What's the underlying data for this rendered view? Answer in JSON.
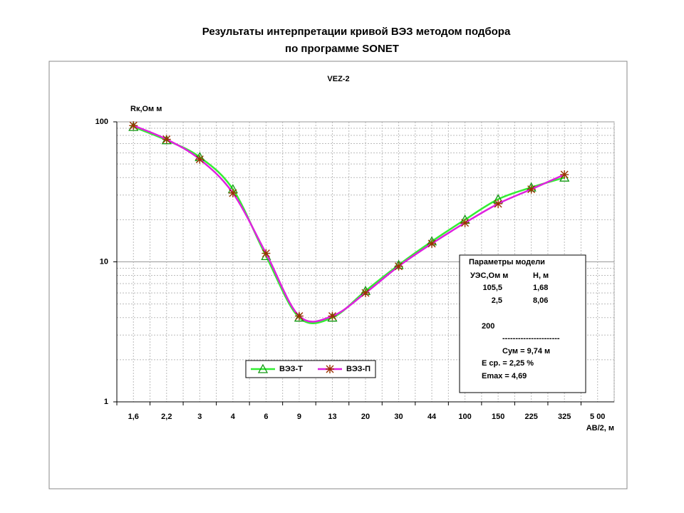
{
  "chart_data": {
    "type": "line",
    "title": [
      "Результаты интерпретации кривой ВЭЗ методом подбора",
      "по программе SONET"
    ],
    "subtitle": "VEZ-2",
    "y_label": "Rк,Ом м",
    "x_label": "АВ/2, м",
    "categories": [
      "1,6",
      "2,2",
      "3",
      "4",
      "6",
      "9",
      "13",
      "20",
      "30",
      "44",
      "100",
      "150",
      "225",
      "325",
      "5 00"
    ],
    "series": [
      {
        "name": "ВЭЗ-Т",
        "color": "#33ee33",
        "marker_color": "#119911",
        "marker": "triangle",
        "values": [
          92,
          74,
          56,
          33,
          11,
          4,
          4,
          6.2,
          9.5,
          14,
          20,
          28,
          34,
          40,
          null
        ]
      },
      {
        "name": "ВЭЗ-П",
        "color": "#e020e0",
        "marker_color": "#993300",
        "marker": "asterisk",
        "values": [
          94,
          75,
          54,
          31,
          11.5,
          4.1,
          4.1,
          6,
          9.3,
          13.5,
          19,
          26,
          33,
          42,
          null
        ]
      }
    ],
    "ylim": [
      1,
      100
    ],
    "yticks": [
      1,
      10,
      100
    ],
    "log_y": true,
    "grid": true,
    "minor_grid": true,
    "parameters": {
      "title": "Параметры модели",
      "headers": [
        "УЭС,Ом м",
        "Н, м"
      ],
      "rows": [
        [
          "105,5",
          "1,68"
        ],
        [
          "2,5",
          "8,06"
        ],
        [
          "200"
        ]
      ],
      "separator": "----------------------",
      "lines": [
        "Сум = 9,74 м",
        "Е ср. = 2,25 %",
        "Emax = 4,69"
      ]
    }
  }
}
